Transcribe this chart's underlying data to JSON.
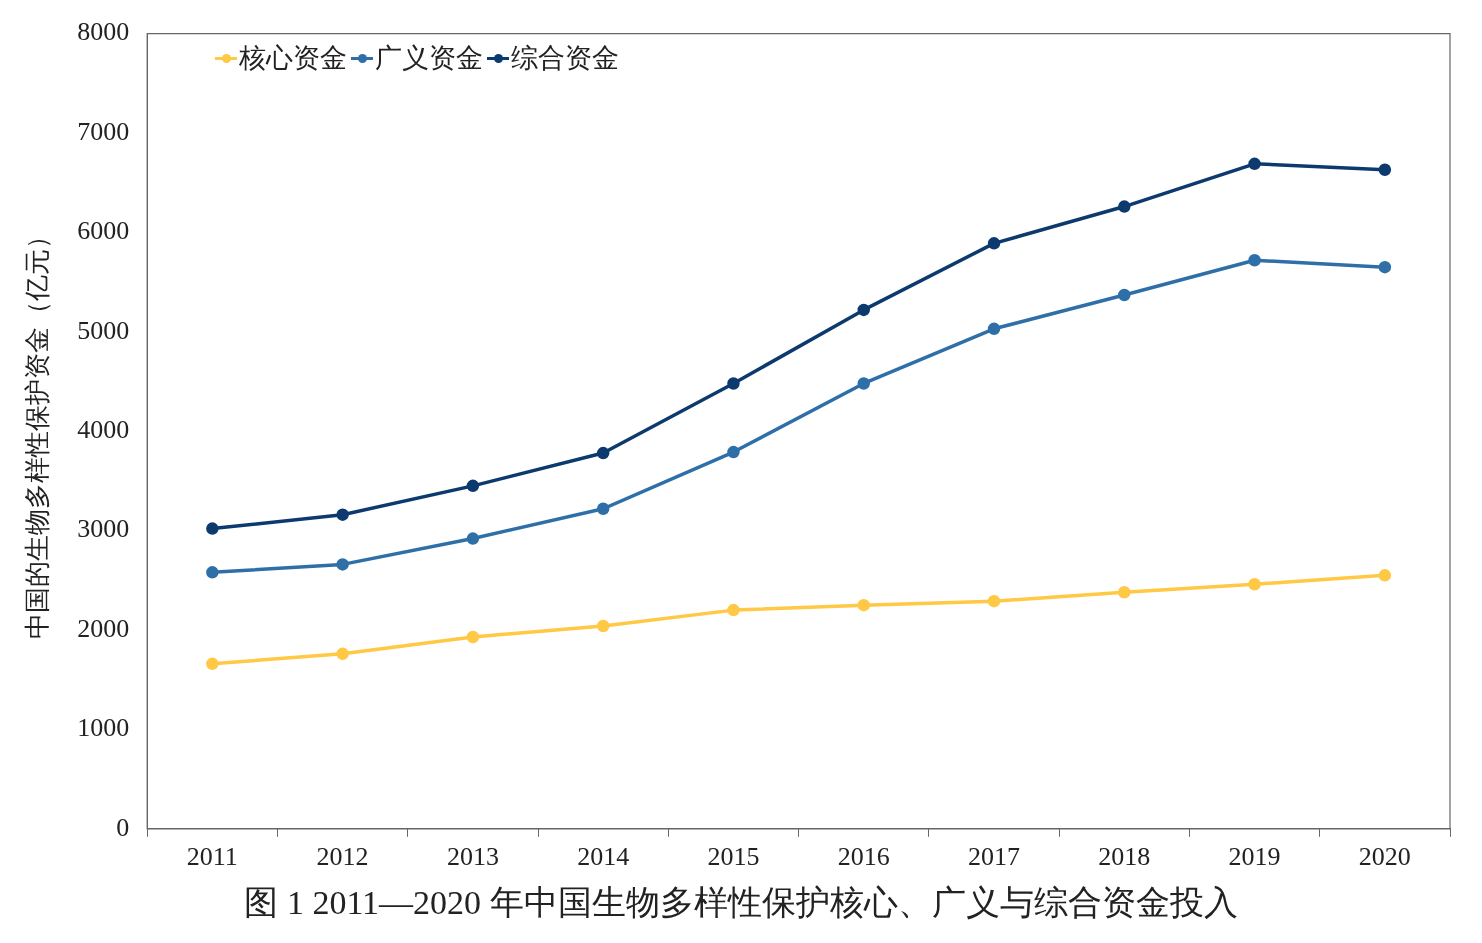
{
  "chart_data": {
    "type": "line",
    "ylabel": "中国的生物多样性保护资金（亿元）",
    "categories": [
      "2011",
      "2012",
      "2013",
      "2014",
      "2015",
      "2016",
      "2017",
      "2018",
      "2019",
      "2020"
    ],
    "series": [
      {
        "name": "核心资金",
        "color": "#ffc845",
        "values": [
          1660,
          1760,
          1930,
          2040,
          2200,
          2250,
          2290,
          2380,
          2460,
          2550
        ]
      },
      {
        "name": "广义资金",
        "color": "#2e6fa8",
        "values": [
          2580,
          2660,
          2920,
          3220,
          3790,
          4480,
          5030,
          5370,
          5720,
          5650
        ]
      },
      {
        "name": "综合资金",
        "color": "#0d3a6e",
        "values": [
          3020,
          3160,
          3450,
          3780,
          4480,
          5220,
          5890,
          6260,
          6690,
          6630
        ]
      }
    ],
    "ylim": [
      0,
      8000
    ],
    "yticks": [
      0,
      1000,
      2000,
      3000,
      4000,
      5000,
      6000,
      7000,
      8000
    ],
    "grid": false,
    "legend": "top left",
    "marker": "circle",
    "line_style": "solid",
    "annotations": [
      "图 1 2011—2020 年中国生物多样性保护核心、广义与综合资金投入"
    ]
  }
}
